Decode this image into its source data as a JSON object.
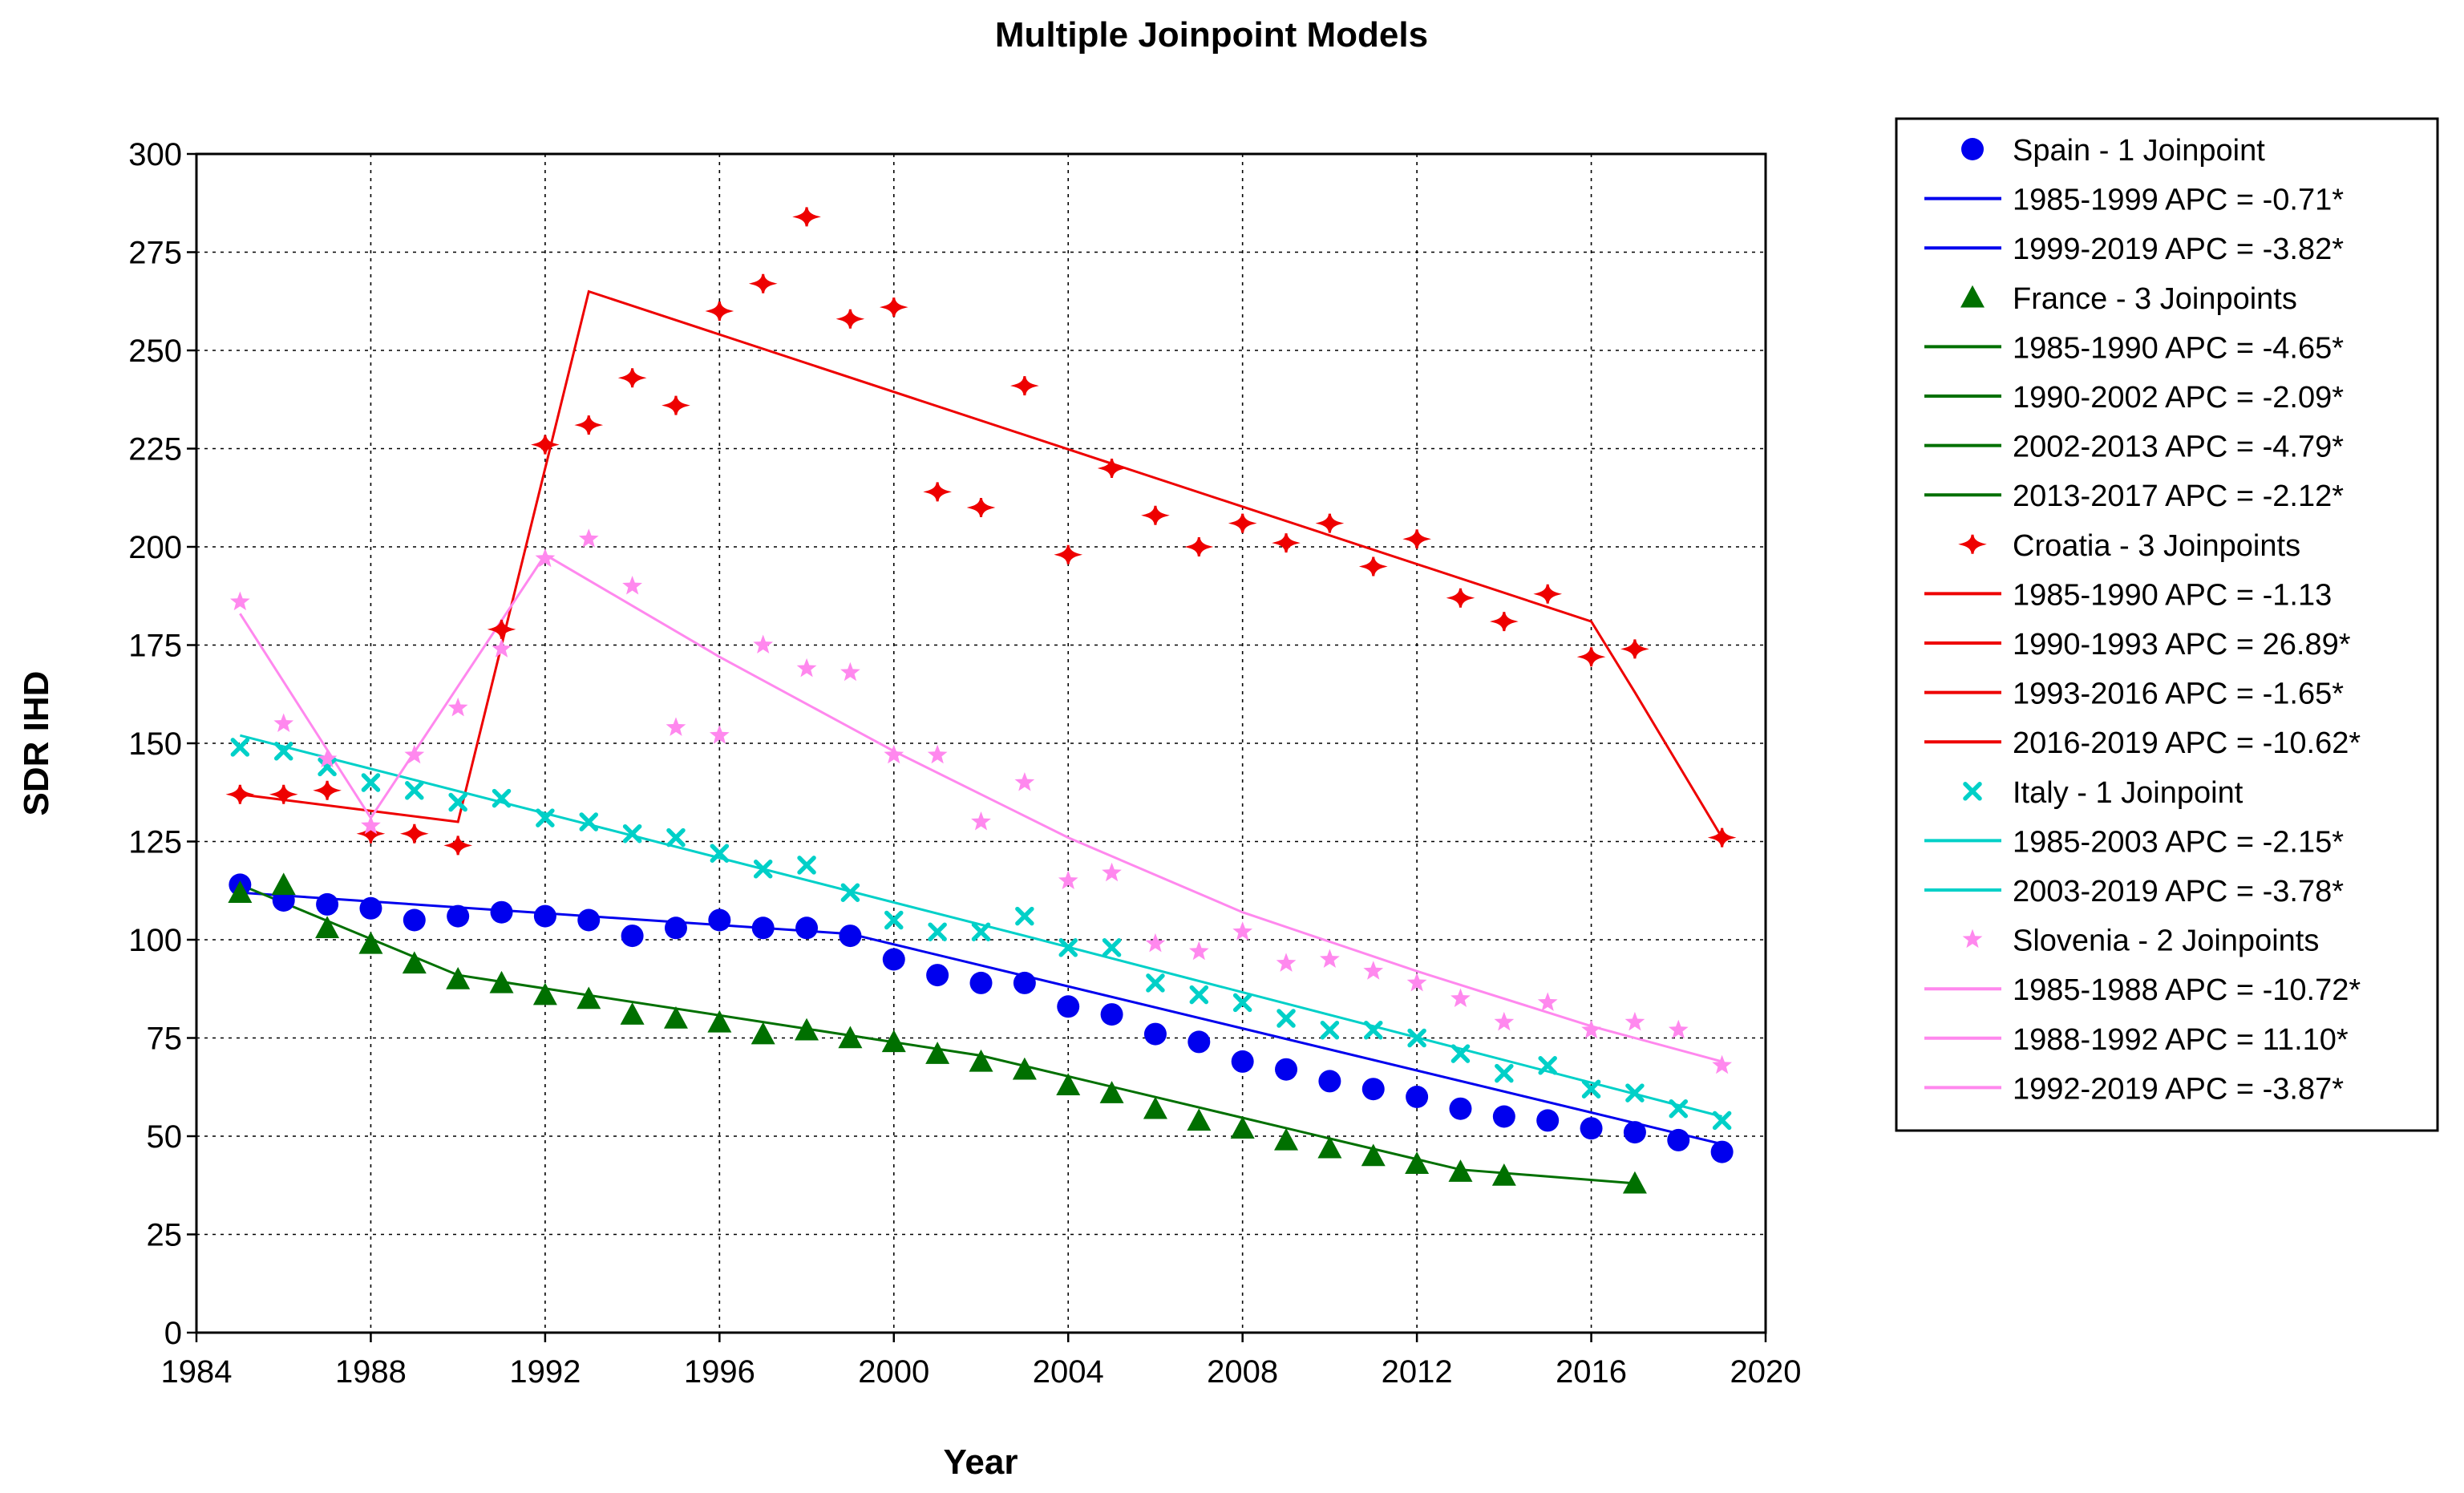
{
  "chart_data": {
    "type": "line",
    "title": "Multiple Joinpoint Models",
    "xlabel": "Year",
    "ylabel": "SDR IHD",
    "xlim": [
      1984,
      2020
    ],
    "ylim": [
      0,
      300
    ],
    "xticks": [
      1984,
      1988,
      1992,
      1996,
      2000,
      2004,
      2008,
      2012,
      2016,
      2020
    ],
    "yticks": [
      0,
      25,
      50,
      75,
      100,
      125,
      150,
      175,
      200,
      225,
      250,
      275,
      300
    ],
    "grid": true,
    "legend_position": "right",
    "series": [
      {
        "name": "Spain - 1 Joinpoint",
        "color": "#0000ee",
        "marker": "circle",
        "points": [
          [
            1985,
            114
          ],
          [
            1986,
            110
          ],
          [
            1987,
            109
          ],
          [
            1988,
            108
          ],
          [
            1989,
            105
          ],
          [
            1990,
            106
          ],
          [
            1991,
            107
          ],
          [
            1992,
            106
          ],
          [
            1993,
            105
          ],
          [
            1994,
            101
          ],
          [
            1995,
            103
          ],
          [
            1996,
            105
          ],
          [
            1997,
            103
          ],
          [
            1998,
            103
          ],
          [
            1999,
            101
          ],
          [
            2000,
            95
          ],
          [
            2001,
            91
          ],
          [
            2002,
            89
          ],
          [
            2003,
            89
          ],
          [
            2004,
            83
          ],
          [
            2005,
            81
          ],
          [
            2006,
            76
          ],
          [
            2007,
            74
          ],
          [
            2008,
            69
          ],
          [
            2009,
            67
          ],
          [
            2010,
            64
          ],
          [
            2011,
            62
          ],
          [
            2012,
            60
          ],
          [
            2013,
            57
          ],
          [
            2014,
            55
          ],
          [
            2015,
            54
          ],
          [
            2016,
            52
          ],
          [
            2017,
            51
          ],
          [
            2018,
            49
          ],
          [
            2019,
            46
          ]
        ],
        "fit": [
          [
            1985,
            112
          ],
          [
            1999,
            101.5
          ],
          [
            2019,
            48
          ]
        ],
        "segments": [
          "1985-1999 APC  = -0.71*",
          "1999-2019 APC  = -3.82*"
        ]
      },
      {
        "name": "France - 3 Joinpoints",
        "color": "#007000",
        "marker": "triangle",
        "points": [
          [
            1985,
            112
          ],
          [
            1986,
            114
          ],
          [
            1987,
            103
          ],
          [
            1988,
            99
          ],
          [
            1989,
            94
          ],
          [
            1990,
            90
          ],
          [
            1991,
            89
          ],
          [
            1992,
            86
          ],
          [
            1993,
            85
          ],
          [
            1994,
            81
          ],
          [
            1995,
            80
          ],
          [
            1996,
            79
          ],
          [
            1997,
            76
          ],
          [
            1998,
            77
          ],
          [
            1999,
            75
          ],
          [
            2000,
            74
          ],
          [
            2001,
            71
          ],
          [
            2002,
            69
          ],
          [
            2003,
            67
          ],
          [
            2004,
            63
          ],
          [
            2005,
            61
          ],
          [
            2006,
            57
          ],
          [
            2007,
            54
          ],
          [
            2008,
            52
          ],
          [
            2009,
            49
          ],
          [
            2010,
            47
          ],
          [
            2011,
            45
          ],
          [
            2012,
            43
          ],
          [
            2013,
            41
          ],
          [
            2014,
            40
          ],
          [
            2017,
            38
          ]
        ],
        "fit": [
          [
            1985,
            114
          ],
          [
            1990,
            91
          ],
          [
            2002,
            70.5
          ],
          [
            2013,
            41.5
          ],
          [
            2017,
            38
          ]
        ],
        "segments": [
          "1985-1990 APC  = -4.65*",
          "1990-2002 APC  = -2.09*",
          "2002-2013 APC  = -4.79*",
          "2013-2017 APC  = -2.12*"
        ]
      },
      {
        "name": "Croatia - 3 Joinpoints",
        "color": "#ee0000",
        "marker": "plus",
        "points": [
          [
            1985,
            137
          ],
          [
            1986,
            137
          ],
          [
            1987,
            138
          ],
          [
            1988,
            127
          ],
          [
            1989,
            127
          ],
          [
            1990,
            124
          ],
          [
            1991,
            179
          ],
          [
            1992,
            226
          ],
          [
            1993,
            231
          ],
          [
            1994,
            243
          ],
          [
            1995,
            236
          ],
          [
            1996,
            260
          ],
          [
            1997,
            267
          ],
          [
            1998,
            284
          ],
          [
            1999,
            258
          ],
          [
            2000,
            261
          ],
          [
            2001,
            214
          ],
          [
            2002,
            210
          ],
          [
            2003,
            241
          ],
          [
            2004,
            198
          ],
          [
            2005,
            220
          ],
          [
            2006,
            208
          ],
          [
            2007,
            200
          ],
          [
            2008,
            206
          ],
          [
            2009,
            201
          ],
          [
            2010,
            206
          ],
          [
            2011,
            195
          ],
          [
            2012,
            202
          ],
          [
            2013,
            187
          ],
          [
            2014,
            181
          ],
          [
            2015,
            188
          ],
          [
            2016,
            172
          ],
          [
            2017,
            174
          ],
          [
            2019,
            126
          ]
        ],
        "fit": [
          [
            1985,
            137
          ],
          [
            1990,
            130
          ],
          [
            1993,
            265
          ],
          [
            2016,
            181
          ],
          [
            2017,
            163
          ],
          [
            2019,
            126
          ]
        ],
        "segments": [
          "1985-1990 APC  =  -1.13",
          "1990-1993 APC  =  26.89*",
          "1993-2016 APC  =  -1.65*",
          "2016-2019 APC  = -10.62*"
        ]
      },
      {
        "name": "Italy - 1 Joinpoint",
        "color": "#00d0c8",
        "marker": "cross",
        "points": [
          [
            1985,
            149
          ],
          [
            1986,
            148
          ],
          [
            1987,
            144
          ],
          [
            1988,
            140
          ],
          [
            1989,
            138
          ],
          [
            1990,
            135
          ],
          [
            1991,
            136
          ],
          [
            1992,
            131
          ],
          [
            1993,
            130
          ],
          [
            1994,
            127
          ],
          [
            1995,
            126
          ],
          [
            1996,
            122
          ],
          [
            1997,
            118
          ],
          [
            1998,
            119
          ],
          [
            1999,
            112
          ],
          [
            2000,
            105
          ],
          [
            2001,
            102
          ],
          [
            2002,
            102
          ],
          [
            2003,
            106
          ],
          [
            2004,
            98
          ],
          [
            2005,
            98
          ],
          [
            2006,
            89
          ],
          [
            2007,
            86
          ],
          [
            2008,
            84
          ],
          [
            2009,
            80
          ],
          [
            2010,
            77
          ],
          [
            2011,
            77
          ],
          [
            2012,
            75
          ],
          [
            2013,
            71
          ],
          [
            2014,
            66
          ],
          [
            2015,
            68
          ],
          [
            2016,
            62
          ],
          [
            2017,
            61
          ],
          [
            2018,
            57
          ],
          [
            2019,
            54
          ]
        ],
        "fit": [
          [
            1985,
            152
          ],
          [
            2003,
            101
          ],
          [
            2019,
            55
          ]
        ],
        "segments": [
          "1985-2003 APC  = -2.15*",
          "2003-2019 APC  = -3.78*"
        ]
      },
      {
        "name": "Slovenia - 2 Joinpoints",
        "color": "#ff88ee",
        "marker": "star",
        "points": [
          [
            1985,
            186
          ],
          [
            1986,
            155
          ],
          [
            1987,
            146
          ],
          [
            1988,
            129
          ],
          [
            1989,
            147
          ],
          [
            1990,
            159
          ],
          [
            1991,
            174
          ],
          [
            1992,
            197
          ],
          [
            1993,
            202
          ],
          [
            1994,
            190
          ],
          [
            1995,
            154
          ],
          [
            1996,
            152
          ],
          [
            1997,
            175
          ],
          [
            1998,
            169
          ],
          [
            1999,
            168
          ],
          [
            2000,
            147
          ],
          [
            2001,
            147
          ],
          [
            2002,
            130
          ],
          [
            2003,
            140
          ],
          [
            2004,
            115
          ],
          [
            2005,
            117
          ],
          [
            2006,
            99
          ],
          [
            2007,
            97
          ],
          [
            2008,
            102
          ],
          [
            2009,
            94
          ],
          [
            2010,
            95
          ],
          [
            2011,
            92
          ],
          [
            2012,
            89
          ],
          [
            2013,
            85
          ],
          [
            2014,
            79
          ],
          [
            2015,
            84
          ],
          [
            2016,
            77
          ],
          [
            2017,
            79
          ],
          [
            2018,
            77
          ],
          [
            2019,
            68
          ]
        ],
        "fit": [
          [
            1985,
            183
          ],
          [
            1988,
            131
          ],
          [
            1992,
            198
          ],
          [
            1996,
            172
          ],
          [
            2000,
            148
          ],
          [
            2004,
            126
          ],
          [
            2008,
            107
          ],
          [
            2012,
            92
          ],
          [
            2016,
            78
          ],
          [
            2019,
            69
          ]
        ],
        "segments": [
          "1985-1988 APC  = -10.72*",
          "1988-1992 APC  =  11.10*",
          "1992-2019 APC  =  -3.87*"
        ]
      }
    ]
  }
}
